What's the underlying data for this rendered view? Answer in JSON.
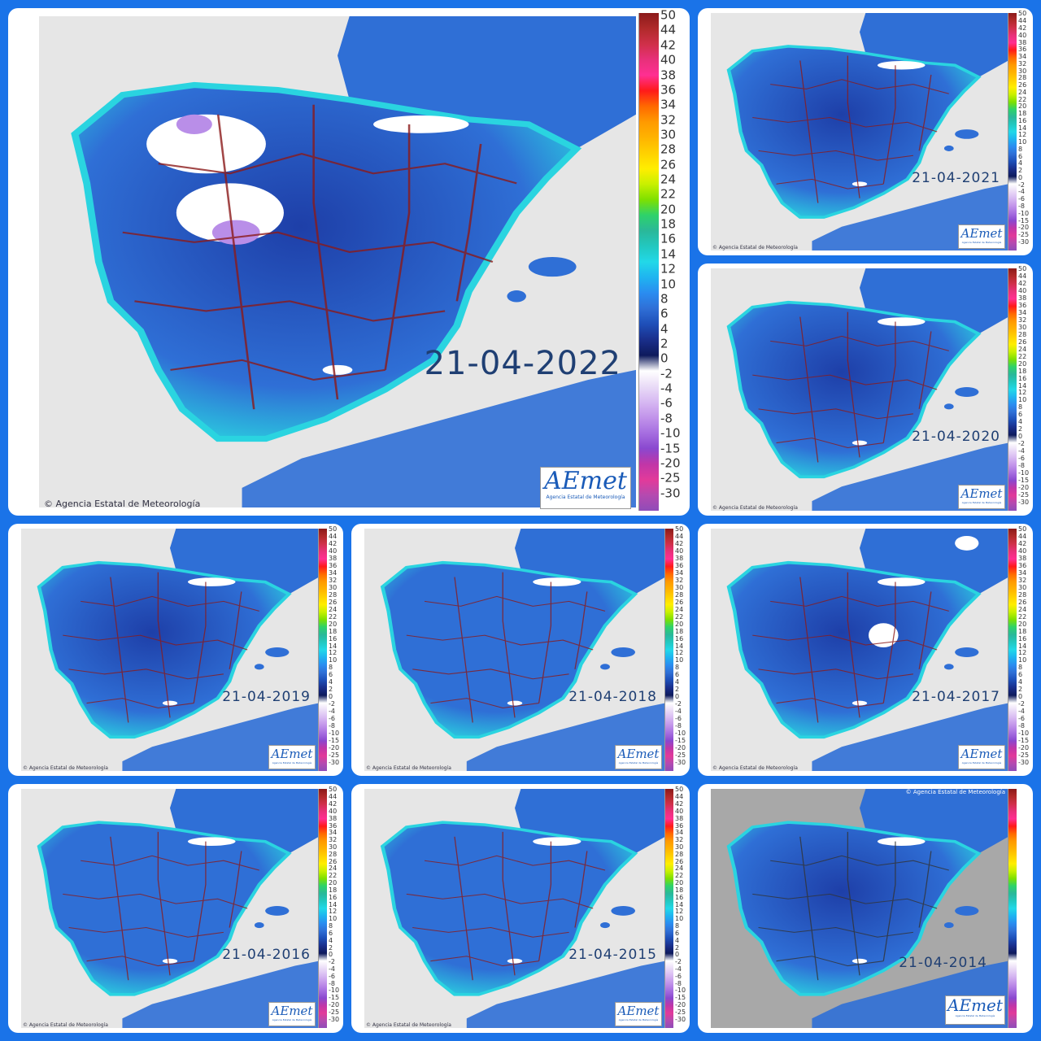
{
  "source_credit": "© Agencia Estatal de Meteorología",
  "logo": {
    "text": "AEmet",
    "subtitle": "Agencia Estatal de Meteorología"
  },
  "legend": {
    "positive_labels": [
      "44",
      "42",
      "40",
      "38",
      "36",
      "34",
      "32",
      "30",
      "28",
      "26",
      "24",
      "22",
      "20",
      "18",
      "16",
      "14",
      "12",
      "10",
      "8",
      "6",
      "4",
      "2",
      "0"
    ],
    "negative_labels": [
      "-2",
      "-4",
      "-6",
      "-8",
      "-10",
      "-15",
      "-20",
      "-25",
      "-30"
    ],
    "top_partial_label": "50"
  },
  "colors": {
    "frame": "#1a73e8",
    "land_deep": "#1e3fa8",
    "land_mid": "#2f6fd6",
    "coast_cyan": "#2ad4e0",
    "sea": "#e6e6e6",
    "snow": "#ffffff",
    "frost": "#b98ee8",
    "borders": "#8b1a1a"
  },
  "maps": [
    {
      "id": "2022",
      "date": "21-04-2022"
    },
    {
      "id": "2021",
      "date": "21-04-2021"
    },
    {
      "id": "2020",
      "date": "21-04-2020"
    },
    {
      "id": "2019",
      "date": "21-04-2019"
    },
    {
      "id": "2018",
      "date": "21-04-2018"
    },
    {
      "id": "2017",
      "date": "21-04-2017"
    },
    {
      "id": "2016",
      "date": "21-04-2016"
    },
    {
      "id": "2015",
      "date": "21-04-2015"
    },
    {
      "id": "2014",
      "date": "21-04-2014"
    }
  ]
}
